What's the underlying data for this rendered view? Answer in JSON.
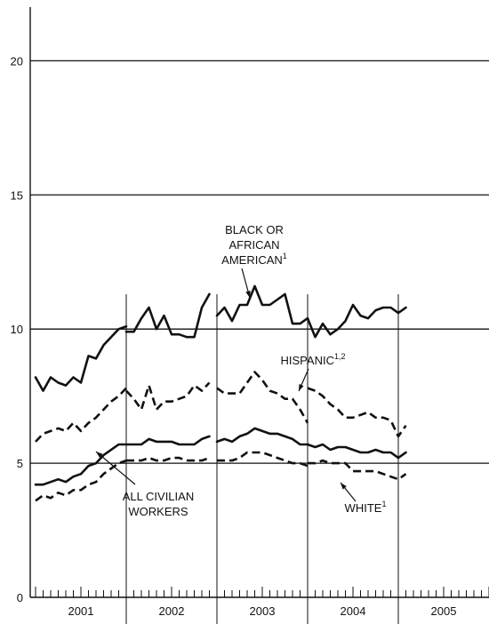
{
  "chart_data": {
    "type": "line",
    "ylim": [
      0,
      22
    ],
    "y_ticks": [
      0,
      5,
      10,
      15,
      20
    ],
    "x_start": 2001.0,
    "x_end": 2006.0,
    "years": [
      "2001",
      "2002",
      "2003",
      "2004",
      "2005"
    ],
    "grid": "horizontal at 5, 10, 15, 20",
    "recession_breaks": [
      2002.0,
      2003.0,
      2004.0,
      2005.0
    ],
    "series": [
      {
        "name": "BLACK OR AFRICAN AMERICAN",
        "label_lines": [
          "BLACK OR",
          "AFRICAN",
          "AMERICAN"
        ],
        "sup": "1",
        "style": "solid",
        "segments": [
          [
            [
              2001.0,
              8.2
            ],
            [
              2001.0833,
              7.7
            ],
            [
              2001.1667,
              8.2
            ],
            [
              2001.25,
              8.0
            ],
            [
              2001.3333,
              7.9
            ],
            [
              2001.4167,
              8.2
            ],
            [
              2001.5,
              8.0
            ],
            [
              2001.5833,
              9.0
            ],
            [
              2001.6667,
              8.9
            ],
            [
              2001.75,
              9.4
            ],
            [
              2001.8333,
              9.7
            ],
            [
              2001.9167,
              10.0
            ],
            [
              2002.0,
              10.1
            ]
          ],
          [
            [
              2002.0,
              9.9
            ],
            [
              2002.0833,
              9.9
            ],
            [
              2002.1667,
              10.4
            ],
            [
              2002.25,
              10.8
            ],
            [
              2002.3333,
              10.0
            ],
            [
              2002.4167,
              10.5
            ],
            [
              2002.5,
              9.8
            ],
            [
              2002.5833,
              9.8
            ],
            [
              2002.6667,
              9.7
            ],
            [
              2002.75,
              9.7
            ],
            [
              2002.8333,
              10.8
            ],
            [
              2002.9167,
              11.3
            ]
          ],
          [
            [
              2003.0,
              10.5
            ],
            [
              2003.0833,
              10.8
            ],
            [
              2003.1667,
              10.3
            ],
            [
              2003.25,
              10.9
            ],
            [
              2003.3333,
              10.9
            ],
            [
              2003.4167,
              11.6
            ],
            [
              2003.5,
              10.9
            ],
            [
              2003.5833,
              10.9
            ],
            [
              2003.6667,
              11.1
            ],
            [
              2003.75,
              11.3
            ],
            [
              2003.8333,
              10.2
            ],
            [
              2003.9167,
              10.2
            ],
            [
              2004.0,
              10.4
            ]
          ],
          [
            [
              2004.0,
              10.4
            ],
            [
              2004.0833,
              9.7
            ],
            [
              2004.1667,
              10.2
            ],
            [
              2004.25,
              9.8
            ],
            [
              2004.3333,
              10.0
            ],
            [
              2004.4167,
              10.3
            ],
            [
              2004.5,
              10.9
            ],
            [
              2004.5833,
              10.5
            ],
            [
              2004.6667,
              10.4
            ],
            [
              2004.75,
              10.7
            ],
            [
              2004.8333,
              10.8
            ],
            [
              2004.9167,
              10.8
            ],
            [
              2005.0,
              10.6
            ],
            [
              2005.0833,
              10.8
            ]
          ]
        ]
      },
      {
        "name": "HISPANIC",
        "label_lines": [
          "HISPANIC"
        ],
        "sup": "1,2",
        "style": "dashed",
        "segments": [
          [
            [
              2001.0,
              5.8
            ],
            [
              2001.0833,
              6.1
            ],
            [
              2001.1667,
              6.2
            ],
            [
              2001.25,
              6.3
            ],
            [
              2001.3333,
              6.2
            ],
            [
              2001.4167,
              6.5
            ],
            [
              2001.5,
              6.2
            ],
            [
              2001.5833,
              6.5
            ],
            [
              2001.6667,
              6.7
            ],
            [
              2001.75,
              7.0
            ],
            [
              2001.8333,
              7.3
            ],
            [
              2001.9167,
              7.5
            ],
            [
              2002.0,
              7.8
            ]
          ],
          [
            [
              2002.0,
              7.7
            ],
            [
              2002.0833,
              7.4
            ],
            [
              2002.1667,
              7.0
            ],
            [
              2002.25,
              7.9
            ],
            [
              2002.3333,
              7.0
            ],
            [
              2002.4167,
              7.3
            ],
            [
              2002.5,
              7.3
            ],
            [
              2002.5833,
              7.4
            ],
            [
              2002.6667,
              7.5
            ],
            [
              2002.75,
              7.9
            ],
            [
              2002.8333,
              7.7
            ],
            [
              2002.9167,
              8.0
            ]
          ],
          [
            [
              2003.0,
              7.8
            ],
            [
              2003.0833,
              7.6
            ],
            [
              2003.1667,
              7.6
            ],
            [
              2003.25,
              7.6
            ],
            [
              2003.3333,
              8.0
            ],
            [
              2003.4167,
              8.4
            ],
            [
              2003.5,
              8.1
            ],
            [
              2003.5833,
              7.7
            ],
            [
              2003.6667,
              7.6
            ],
            [
              2003.75,
              7.4
            ],
            [
              2003.8333,
              7.4
            ],
            [
              2003.9167,
              7.0
            ],
            [
              2004.0,
              6.5
            ]
          ],
          [
            [
              2004.0,
              7.8
            ],
            [
              2004.0833,
              7.7
            ],
            [
              2004.1667,
              7.5
            ],
            [
              2004.25,
              7.2
            ],
            [
              2004.3333,
              7.0
            ],
            [
              2004.4167,
              6.7
            ],
            [
              2004.5,
              6.7
            ],
            [
              2004.5833,
              6.8
            ],
            [
              2004.6667,
              6.9
            ],
            [
              2004.75,
              6.7
            ],
            [
              2004.8333,
              6.7
            ],
            [
              2004.9167,
              6.6
            ],
            [
              2005.0,
              6.0
            ],
            [
              2005.0833,
              6.4
            ]
          ]
        ]
      },
      {
        "name": "ALL CIVILIAN WORKERS",
        "label_lines": [
          "ALL CIVILIAN",
          "WORKERS"
        ],
        "sup": "",
        "style": "solid",
        "segments": [
          [
            [
              2001.0,
              4.2
            ],
            [
              2001.0833,
              4.2
            ],
            [
              2001.1667,
              4.3
            ],
            [
              2001.25,
              4.4
            ],
            [
              2001.3333,
              4.3
            ],
            [
              2001.4167,
              4.5
            ],
            [
              2001.5,
              4.6
            ],
            [
              2001.5833,
              4.9
            ],
            [
              2001.6667,
              5.0
            ],
            [
              2001.75,
              5.3
            ],
            [
              2001.8333,
              5.5
            ],
            [
              2001.9167,
              5.7
            ],
            [
              2002.0,
              5.7
            ]
          ],
          [
            [
              2002.0,
              5.7
            ],
            [
              2002.0833,
              5.7
            ],
            [
              2002.1667,
              5.7
            ],
            [
              2002.25,
              5.9
            ],
            [
              2002.3333,
              5.8
            ],
            [
              2002.4167,
              5.8
            ],
            [
              2002.5,
              5.8
            ],
            [
              2002.5833,
              5.7
            ],
            [
              2002.6667,
              5.7
            ],
            [
              2002.75,
              5.7
            ],
            [
              2002.8333,
              5.9
            ],
            [
              2002.9167,
              6.0
            ]
          ],
          [
            [
              2003.0,
              5.8
            ],
            [
              2003.0833,
              5.9
            ],
            [
              2003.1667,
              5.8
            ],
            [
              2003.25,
              6.0
            ],
            [
              2003.3333,
              6.1
            ],
            [
              2003.4167,
              6.3
            ],
            [
              2003.5,
              6.2
            ],
            [
              2003.5833,
              6.1
            ],
            [
              2003.6667,
              6.1
            ],
            [
              2003.75,
              6.0
            ],
            [
              2003.8333,
              5.9
            ],
            [
              2003.9167,
              5.7
            ],
            [
              2004.0,
              5.7
            ]
          ],
          [
            [
              2004.0,
              5.7
            ],
            [
              2004.0833,
              5.6
            ],
            [
              2004.1667,
              5.7
            ],
            [
              2004.25,
              5.5
            ],
            [
              2004.3333,
              5.6
            ],
            [
              2004.4167,
              5.6
            ],
            [
              2004.5,
              5.5
            ],
            [
              2004.5833,
              5.4
            ],
            [
              2004.6667,
              5.4
            ],
            [
              2004.75,
              5.5
            ],
            [
              2004.8333,
              5.4
            ],
            [
              2004.9167,
              5.4
            ],
            [
              2005.0,
              5.2
            ],
            [
              2005.0833,
              5.4
            ]
          ]
        ]
      },
      {
        "name": "WHITE",
        "label_lines": [
          "WHITE"
        ],
        "sup": "1",
        "style": "dashed",
        "segments": [
          [
            [
              2001.0,
              3.6
            ],
            [
              2001.0833,
              3.8
            ],
            [
              2001.1667,
              3.7
            ],
            [
              2001.25,
              3.9
            ],
            [
              2001.3333,
              3.8
            ],
            [
              2001.4167,
              4.0
            ],
            [
              2001.5,
              4.0
            ],
            [
              2001.5833,
              4.2
            ],
            [
              2001.6667,
              4.3
            ],
            [
              2001.75,
              4.6
            ],
            [
              2001.8333,
              4.8
            ],
            [
              2001.9167,
              5.0
            ],
            [
              2002.0,
              5.1
            ]
          ],
          [
            [
              2002.0,
              5.1
            ],
            [
              2002.0833,
              5.1
            ],
            [
              2002.1667,
              5.1
            ],
            [
              2002.25,
              5.2
            ],
            [
              2002.3333,
              5.1
            ],
            [
              2002.4167,
              5.1
            ],
            [
              2002.5,
              5.2
            ],
            [
              2002.5833,
              5.2
            ],
            [
              2002.6667,
              5.1
            ],
            [
              2002.75,
              5.1
            ],
            [
              2002.8333,
              5.1
            ],
            [
              2002.9167,
              5.2
            ]
          ],
          [
            [
              2003.0,
              5.1
            ],
            [
              2003.0833,
              5.1
            ],
            [
              2003.1667,
              5.1
            ],
            [
              2003.25,
              5.2
            ],
            [
              2003.3333,
              5.4
            ],
            [
              2003.4167,
              5.4
            ],
            [
              2003.5,
              5.4
            ],
            [
              2003.5833,
              5.3
            ],
            [
              2003.6667,
              5.2
            ],
            [
              2003.75,
              5.1
            ],
            [
              2003.8333,
              5.0
            ],
            [
              2003.9167,
              5.0
            ],
            [
              2004.0,
              4.9
            ]
          ],
          [
            [
              2004.0,
              5.0
            ],
            [
              2004.0833,
              5.0
            ],
            [
              2004.1667,
              5.1
            ],
            [
              2004.25,
              5.0
            ],
            [
              2004.3333,
              5.0
            ],
            [
              2004.4167,
              5.0
            ],
            [
              2004.5,
              4.7
            ],
            [
              2004.5833,
              4.7
            ],
            [
              2004.6667,
              4.7
            ],
            [
              2004.75,
              4.7
            ],
            [
              2004.8333,
              4.6
            ],
            [
              2004.9167,
              4.5
            ],
            [
              2005.0,
              4.4
            ],
            [
              2005.0833,
              4.6
            ]
          ]
        ]
      }
    ]
  }
}
